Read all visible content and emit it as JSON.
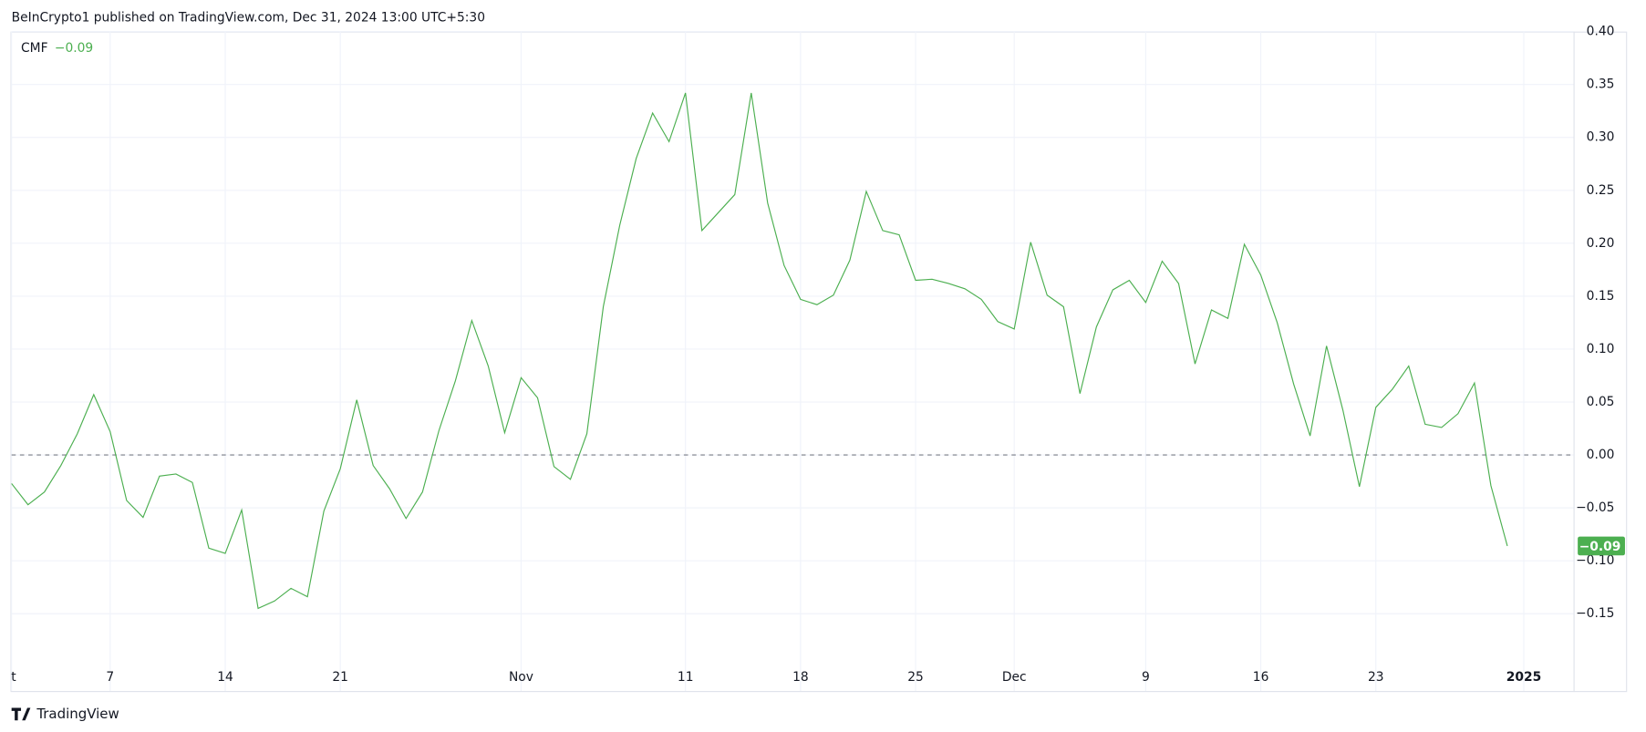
{
  "header": "BeInCrypto1 published on TradingView.com, Dec 31, 2024 13:00 UTC+5:30",
  "footer": "TradingView",
  "chart_data": {
    "type": "line",
    "current_label": "−0.09",
    "categories": [
      "t",
      null,
      null,
      null,
      null,
      null,
      "7",
      null,
      null,
      null,
      null,
      null,
      null,
      "14",
      null,
      null,
      null,
      null,
      null,
      null,
      "21",
      null,
      null,
      null,
      null,
      null,
      null,
      null,
      null,
      null,
      null,
      "Nov",
      null,
      null,
      null,
      null,
      null,
      null,
      null,
      null,
      null,
      "11",
      null,
      null,
      null,
      null,
      null,
      null,
      "18",
      null,
      null,
      null,
      null,
      null,
      null,
      "25",
      null,
      null,
      null,
      null,
      null,
      "Dec",
      null,
      null,
      null,
      null,
      null,
      null,
      null,
      "9",
      null,
      null,
      null,
      null,
      null,
      null,
      "16",
      null,
      null,
      null,
      null,
      null,
      null,
      "23",
      null,
      null,
      null,
      null,
      null,
      null,
      null,
      null,
      "2025"
    ],
    "series": [
      {
        "name": "CMF",
        "color": "#4caf50",
        "values": [
          -0.027,
          -0.047,
          -0.035,
          -0.01,
          0.02,
          0.057,
          0.022,
          -0.043,
          -0.059,
          -0.02,
          -0.018,
          -0.026,
          -0.088,
          -0.093,
          -0.052,
          -0.145,
          -0.138,
          -0.126,
          -0.134,
          -0.053,
          -0.013,
          0.052,
          -0.01,
          -0.032,
          -0.06,
          -0.035,
          0.023,
          0.07,
          0.127,
          0.084,
          0.021,
          0.073,
          0.054,
          -0.011,
          -0.023,
          0.02,
          0.14,
          0.217,
          0.28,
          0.323,
          0.296,
          0.342,
          0.212,
          0.229,
          0.246,
          0.342,
          0.238,
          0.179,
          0.147,
          0.142,
          0.151,
          0.184,
          0.249,
          0.212,
          0.208,
          0.165,
          0.166,
          0.162,
          0.157,
          0.147,
          0.126,
          0.119,
          0.201,
          0.151,
          0.14,
          0.058,
          0.121,
          0.156,
          0.165,
          0.144,
          0.183,
          0.162,
          0.086,
          0.137,
          0.129,
          0.199,
          0.17,
          0.125,
          0.067,
          0.018,
          0.103,
          0.042,
          -0.03,
          0.045,
          0.062,
          0.084,
          0.029,
          0.026,
          0.039,
          0.068,
          -0.029,
          -0.086,
          null
        ]
      }
    ],
    "ylim": [
      -0.223,
      0.4
    ],
    "yticks": [
      {
        "value": -0.15,
        "label": "−0.15"
      },
      {
        "value": -0.1,
        "label": "−0.10"
      },
      {
        "value": -0.05,
        "label": "−0.05"
      },
      {
        "value": 0,
        "label": "0.00"
      },
      {
        "value": 0.05,
        "label": "0.05"
      },
      {
        "value": 0.1,
        "label": "0.10"
      },
      {
        "value": 0.15,
        "label": "0.15"
      },
      {
        "value": 0.2,
        "label": "0.20"
      },
      {
        "value": 0.25,
        "label": "0.25"
      },
      {
        "value": 0.3,
        "label": "0.30"
      },
      {
        "value": 0.35,
        "label": "0.35"
      },
      {
        "value": 0.4,
        "label": "0.40"
      }
    ],
    "zero_line": 0,
    "grid": true
  }
}
